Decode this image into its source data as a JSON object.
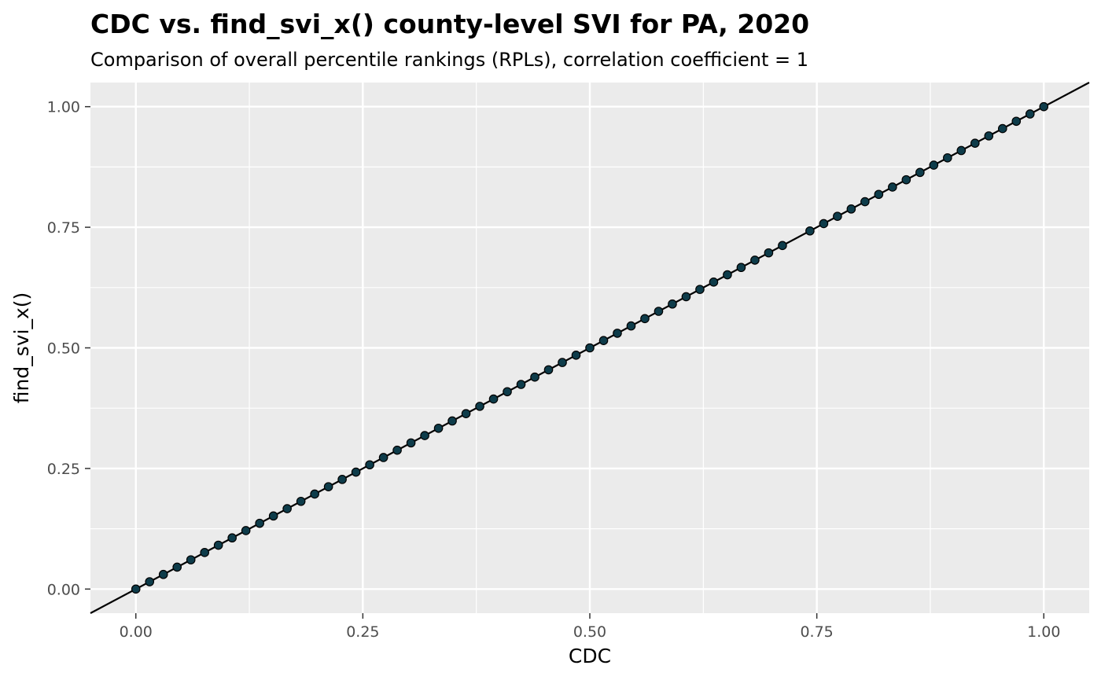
{
  "chart_data": {
    "type": "scatter",
    "title": "CDC vs. find_svi_x() county-level SVI for PA, 2020",
    "subtitle": "Comparison of overall percentile rankings (RPLs), correlation coefficient = 1",
    "xlabel": "CDC",
    "ylabel": "find_svi_x()",
    "xlim": [
      -0.05,
      1.05
    ],
    "ylim": [
      -0.05,
      1.05
    ],
    "x_ticks": [
      0,
      0.25,
      0.5,
      0.75,
      1
    ],
    "y_ticks": [
      0,
      0.25,
      0.5,
      0.75,
      1
    ],
    "x_tick_labels": [
      "0.00",
      "0.25",
      "0.50",
      "0.75",
      "1.00"
    ],
    "y_tick_labels": [
      "0.00",
      "0.25",
      "0.50",
      "0.75",
      "1.00"
    ],
    "grid": true,
    "panel_background": "#ebebeb",
    "gridline_color": "#ffffff",
    "point_color": "#0e3c4a",
    "point_outline_color": "#000000",
    "reference_line": {
      "slope": 1,
      "intercept": 0,
      "color": "#000000"
    },
    "ranks": [
      0,
      1,
      2,
      3,
      4,
      5,
      6,
      7,
      8,
      9,
      10,
      11,
      12,
      13,
      14,
      15,
      16,
      17,
      18,
      19,
      20,
      21,
      22,
      23,
      24,
      25,
      26,
      27,
      28,
      29,
      30,
      31,
      32,
      33,
      34,
      35,
      36,
      37,
      38,
      39,
      40,
      41,
      42,
      43,
      44,
      45,
      46,
      47,
      49,
      50,
      51,
      52,
      53,
      54,
      55,
      56,
      57,
      58,
      59,
      60,
      61,
      62,
      63,
      64,
      65,
      66
    ],
    "rank_denominator": 66
  }
}
